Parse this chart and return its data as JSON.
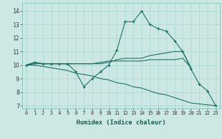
{
  "xlabel": "Humidex (Indice chaleur)",
  "background_color": "#cce8e4",
  "grid_color": "#aad4d0",
  "line_color": "#1a6e64",
  "xlim": [
    -0.5,
    23.5
  ],
  "ylim": [
    6.8,
    14.6
  ],
  "yticks": [
    7,
    8,
    9,
    10,
    11,
    12,
    13,
    14
  ],
  "xticks": [
    0,
    1,
    2,
    3,
    4,
    5,
    6,
    7,
    8,
    9,
    10,
    11,
    12,
    13,
    14,
    15,
    16,
    17,
    18,
    19,
    20,
    21,
    22,
    23
  ],
  "series": [
    {
      "x": [
        0,
        1,
        2,
        3,
        4,
        5,
        6,
        7,
        8,
        9,
        10,
        11,
        12,
        13,
        14,
        15,
        16,
        17,
        18,
        19,
        20,
        21,
        22,
        23
      ],
      "y": [
        10.0,
        10.2,
        10.1,
        10.1,
        10.1,
        10.1,
        9.5,
        8.4,
        9.0,
        9.5,
        10.0,
        11.1,
        13.2,
        13.2,
        14.0,
        13.0,
        12.7,
        12.5,
        11.8,
        11.0,
        9.7,
        8.6,
        8.1,
        7.0
      ],
      "marker": true
    },
    {
      "x": [
        0,
        1,
        2,
        3,
        4,
        5,
        6,
        7,
        8,
        9,
        10,
        11,
        12,
        13,
        14,
        15,
        16,
        17,
        18,
        19,
        20
      ],
      "y": [
        10.0,
        10.2,
        10.1,
        10.1,
        10.1,
        10.1,
        10.1,
        10.1,
        10.1,
        10.1,
        10.2,
        10.4,
        10.5,
        10.5,
        10.5,
        10.7,
        10.8,
        10.9,
        11.0,
        11.0,
        9.8
      ],
      "marker": false
    },
    {
      "x": [
        0,
        1,
        2,
        3,
        4,
        5,
        6,
        7,
        8,
        9,
        10,
        11,
        12,
        13,
        14,
        15,
        16,
        17,
        18,
        19,
        20
      ],
      "y": [
        10.0,
        10.1,
        10.1,
        10.1,
        10.1,
        10.1,
        10.1,
        10.1,
        10.1,
        10.2,
        10.3,
        10.3,
        10.3,
        10.3,
        10.3,
        10.4,
        10.4,
        10.4,
        10.4,
        10.5,
        9.8
      ],
      "marker": false
    },
    {
      "x": [
        0,
        1,
        2,
        3,
        4,
        5,
        6,
        7,
        8,
        9,
        10,
        11,
        12,
        13,
        14,
        15,
        16,
        17,
        18,
        19,
        20,
        21,
        22,
        23
      ],
      "y": [
        10.0,
        10.0,
        9.9,
        9.8,
        9.7,
        9.6,
        9.4,
        9.3,
        9.2,
        9.0,
        8.9,
        8.7,
        8.6,
        8.4,
        8.3,
        8.1,
        7.9,
        7.8,
        7.6,
        7.4,
        7.2,
        null,
        null,
        7.0
      ],
      "marker": false
    }
  ]
}
